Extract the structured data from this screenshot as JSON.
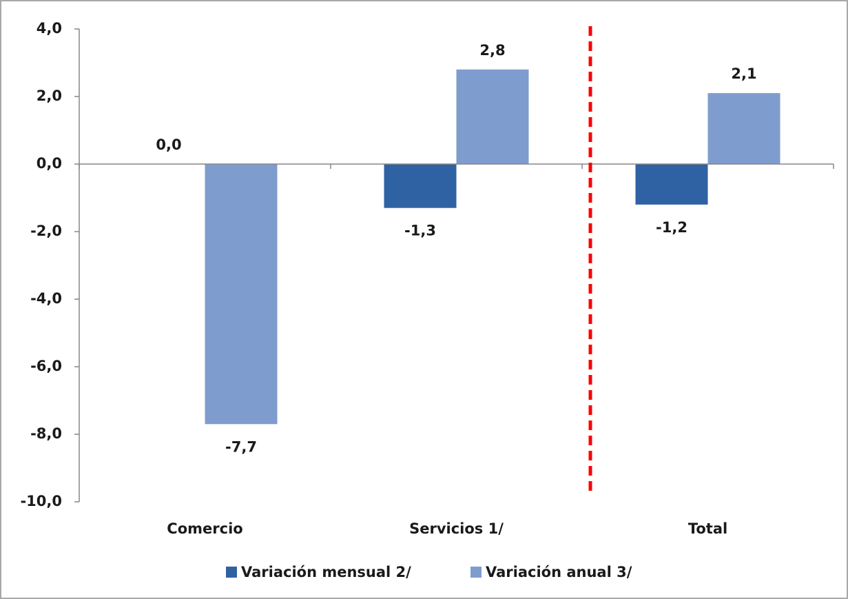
{
  "chart_data": {
    "type": "bar",
    "categories": [
      "Comercio",
      "Servicios 1/",
      "Total"
    ],
    "series": [
      {
        "name": "Variación mensual 2/",
        "color": "#2f62a3",
        "values": [
          0.0,
          -1.3,
          -1.2
        ],
        "value_labels": [
          "0,0",
          "-1,3",
          "-1,2"
        ]
      },
      {
        "name": "Variación anual 3/",
        "color": "#7f9cce",
        "values": [
          -7.7,
          2.8,
          2.1
        ],
        "value_labels": [
          "-7,7",
          "2,8",
          "2,1"
        ]
      }
    ],
    "ylim": [
      -10,
      4
    ],
    "yticks": [
      {
        "value": -10,
        "label": "-10,0"
      },
      {
        "value": -8,
        "label": "-8,0"
      },
      {
        "value": -6,
        "label": "-6,0"
      },
      {
        "value": -4,
        "label": "-4,0"
      },
      {
        "value": -2,
        "label": "-2,0"
      },
      {
        "value": 0,
        "label": "0,0"
      },
      {
        "value": 2,
        "label": "2,0"
      },
      {
        "value": 4,
        "label": "4,0"
      }
    ],
    "grid": false,
    "legend": "bottom"
  }
}
